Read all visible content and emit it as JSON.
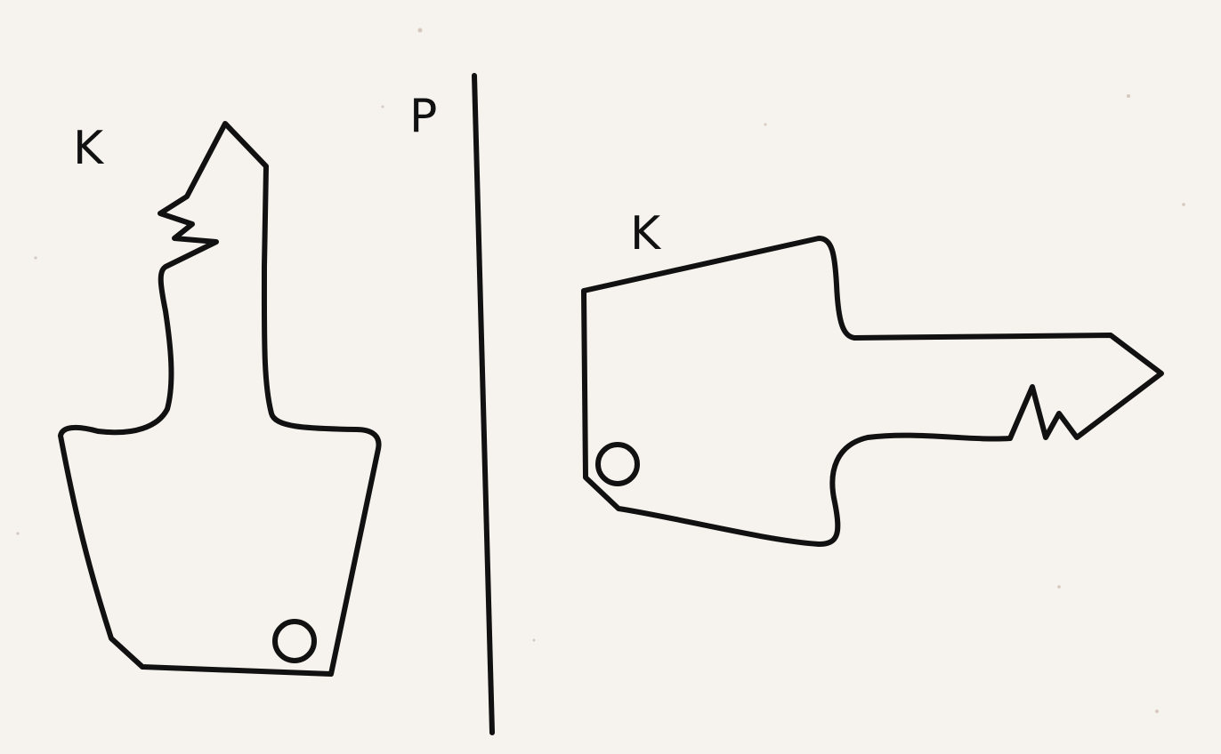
{
  "diagram": {
    "labels": {
      "object_label": "K",
      "mirror_label": "P",
      "image_label": "K"
    },
    "colors": {
      "background": "#f6f2ed",
      "stroke": "#111111"
    }
  }
}
